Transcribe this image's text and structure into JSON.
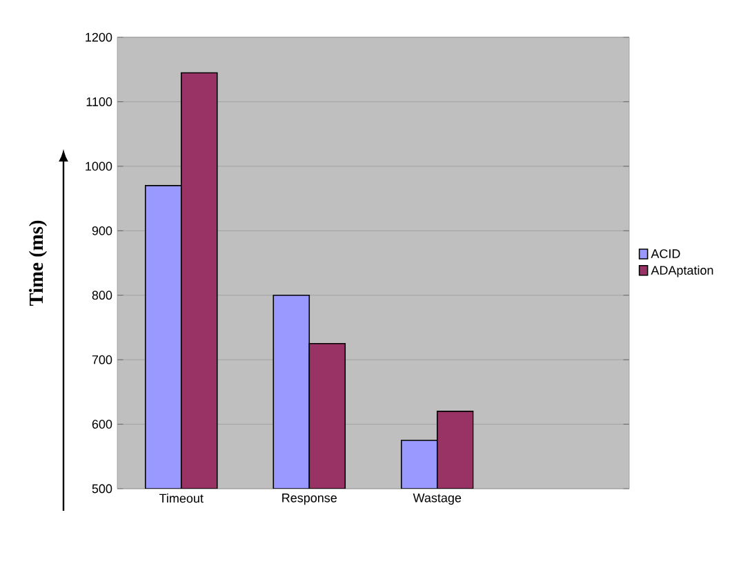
{
  "chart_data": {
    "type": "bar",
    "ylabel": "Time (ms)",
    "categories": [
      "Timeout",
      "Response",
      "Wastage",
      null
    ],
    "series": [
      {
        "name": "ACID",
        "color": "#9999ff",
        "values": [
          970,
          800,
          575,
          null
        ]
      },
      {
        "name": "ADAptation",
        "color": "#993366",
        "values": [
          1145,
          725,
          620,
          null
        ]
      }
    ],
    "ylim": [
      500,
      1200
    ],
    "yticks": [
      500,
      600,
      700,
      800,
      900,
      1000,
      1100,
      1200
    ],
    "grid": "y",
    "legend": "right"
  }
}
